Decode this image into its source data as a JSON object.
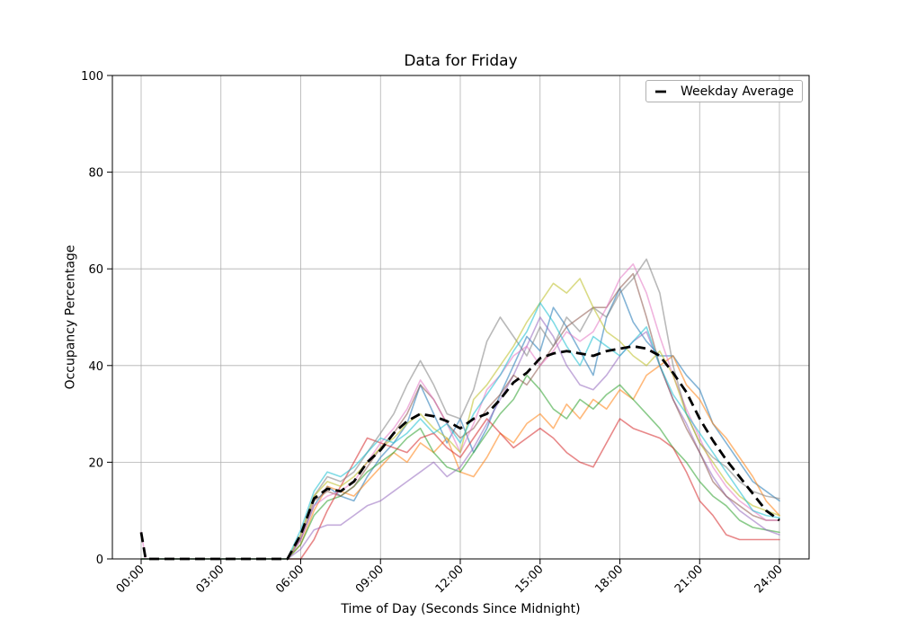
{
  "figure": {
    "title": "Data for Friday",
    "xlabel": "Time of Day (Seconds Since Midnight)",
    "ylabel": "Occupancy Percentage",
    "legend_label": "Weekday Average"
  },
  "chart_data": {
    "type": "line",
    "title": "Data for Friday",
    "xlabel": "Time of Day (Seconds Since Midnight)",
    "ylabel": "Occupancy Percentage",
    "grid": true,
    "legend_position": "upper right",
    "ylim": [
      0,
      100
    ],
    "y_ticks": [
      0,
      20,
      40,
      60,
      80,
      100
    ],
    "x_tick_hours": [
      0,
      3,
      6,
      9,
      12,
      15,
      18,
      21,
      24
    ],
    "x_tick_labels": [
      "00:00",
      "03:00",
      "06:00",
      "09:00",
      "12:00",
      "15:00",
      "18:00",
      "21:00",
      "24:00"
    ],
    "grid_color": "#b0b0b0",
    "series_alpha": 0.55,
    "x_hours": [
      0,
      0.17,
      0.5,
      1,
      1.5,
      2,
      2.5,
      3,
      3.5,
      4,
      4.5,
      5,
      5.5,
      6,
      6.5,
      7,
      7.5,
      8,
      8.5,
      9,
      9.5,
      10,
      10.5,
      11,
      11.5,
      12,
      12.5,
      13,
      13.5,
      14,
      14.5,
      15,
      15.5,
      16,
      16.5,
      17,
      17.5,
      18,
      18.5,
      19,
      19.5,
      20,
      20.5,
      21,
      21.5,
      22,
      22.5,
      23,
      23.5,
      24
    ],
    "series": [
      {
        "color": "#1f77b4",
        "values": [
          0,
          0,
          0,
          0,
          0,
          0,
          0,
          0,
          0,
          0,
          0,
          0,
          0,
          4,
          11,
          15,
          13,
          12,
          17,
          21,
          24,
          28,
          36,
          30,
          24,
          29,
          22,
          27,
          34,
          40,
          46,
          43,
          52,
          48,
          43,
          38,
          50,
          56,
          49,
          45,
          42,
          42,
          38,
          35,
          28,
          24,
          20,
          16,
          14,
          12
        ]
      },
      {
        "color": "#ff7f0e",
        "values": [
          0,
          0,
          0,
          0,
          0,
          0,
          0,
          0,
          0,
          0,
          0,
          0,
          0,
          3,
          10,
          15,
          14,
          13,
          16,
          19,
          22,
          20,
          24,
          22,
          25,
          18,
          17,
          21,
          26,
          24,
          28,
          30,
          27,
          32,
          29,
          33,
          31,
          35,
          33,
          38,
          40,
          42,
          36,
          33,
          28,
          25,
          21,
          17,
          12,
          9
        ]
      },
      {
        "color": "#2ca02c",
        "values": [
          0,
          0,
          0,
          0,
          0,
          0,
          0,
          0,
          0,
          0,
          0,
          0,
          0,
          3,
          9,
          12,
          13,
          15,
          18,
          20,
          22,
          25,
          27,
          22,
          19,
          18,
          22,
          26,
          30,
          33,
          38,
          35,
          31,
          29,
          33,
          31,
          34,
          36,
          33,
          30,
          27,
          23,
          20,
          16,
          13,
          11,
          8,
          6.5,
          6,
          5.5
        ]
      },
      {
        "color": "#d62728",
        "values": [
          0,
          0,
          0,
          0,
          0,
          0,
          0,
          0,
          0,
          0,
          0,
          0,
          0,
          0,
          4,
          10,
          15,
          20,
          25,
          24,
          23,
          22,
          25,
          26,
          23,
          21,
          25,
          29,
          26,
          23,
          25,
          27,
          25,
          22,
          20,
          19,
          24,
          29,
          27,
          26,
          25,
          23,
          18,
          12,
          9,
          5,
          4,
          4,
          4,
          4
        ]
      },
      {
        "color": "#9467bd",
        "values": [
          0,
          0,
          0,
          0,
          0,
          0,
          0,
          0,
          0,
          0,
          0,
          0,
          0,
          2,
          6,
          7,
          7,
          9,
          11,
          12,
          14,
          16,
          18,
          20,
          17,
          19,
          23,
          28,
          33,
          38,
          44,
          50,
          46,
          40,
          36,
          35,
          38,
          42,
          45,
          47,
          40,
          33,
          28,
          22,
          17,
          13,
          10,
          8,
          6,
          5
        ]
      },
      {
        "color": "#8c564b",
        "values": [
          0,
          0,
          0,
          0,
          0,
          0,
          0,
          0,
          0,
          0,
          0,
          0,
          0,
          4,
          12,
          14,
          13,
          15,
          19,
          23,
          26,
          30,
          36,
          33,
          28,
          25,
          27,
          31,
          34,
          38,
          36,
          40,
          44,
          48,
          50,
          52,
          52,
          56,
          59,
          50,
          40,
          33,
          27,
          22,
          16,
          13,
          11,
          9,
          8,
          8
        ]
      },
      {
        "color": "#e377c2",
        "values": [
          5.5,
          0,
          0,
          0,
          0,
          0,
          0,
          0,
          0,
          0,
          0,
          0,
          0,
          4,
          11,
          13,
          14,
          16,
          20,
          24,
          27,
          31,
          37,
          33,
          28,
          22,
          28,
          35,
          38,
          42,
          44,
          40,
          43,
          47,
          45,
          47,
          52,
          58,
          61,
          55,
          46,
          38,
          31,
          25,
          19,
          15,
          12,
          10,
          8,
          8
        ]
      },
      {
        "color": "#7f7f7f",
        "values": [
          0,
          0,
          0,
          0,
          0,
          0,
          0,
          0,
          0,
          0,
          0,
          0,
          0,
          5,
          13,
          17,
          16,
          18,
          22,
          26,
          30,
          36,
          41,
          36,
          30,
          29,
          35,
          45,
          50,
          46,
          42,
          48,
          44,
          50,
          47,
          52,
          50,
          55,
          58,
          62,
          55,
          40,
          30,
          24,
          21,
          19,
          16,
          14,
          13,
          12.5
        ]
      },
      {
        "color": "#bcbd22",
        "values": [
          0,
          0,
          0,
          0,
          0,
          0,
          0,
          0,
          0,
          0,
          0,
          0,
          0,
          5,
          13,
          16,
          15,
          17,
          20,
          23,
          25,
          28,
          30,
          27,
          25,
          22,
          33,
          36,
          40,
          44,
          49,
          53,
          57,
          55,
          58,
          52,
          47,
          45,
          42,
          40,
          43,
          38,
          30,
          24,
          20,
          16,
          13,
          11,
          10,
          9
        ]
      },
      {
        "color": "#17becf",
        "values": [
          0,
          0,
          0,
          0,
          0,
          0,
          0,
          0,
          0,
          0,
          0,
          0,
          0,
          6,
          14,
          18,
          17,
          19,
          22,
          25,
          24,
          26,
          29,
          26,
          28,
          24,
          30,
          34,
          38,
          43,
          47,
          53,
          49,
          44,
          40,
          46,
          44,
          42,
          45,
          48,
          40,
          34,
          30,
          26,
          22,
          18,
          14,
          10,
          9,
          8.5
        ]
      }
    ],
    "average_series": {
      "name": "Weekday Average",
      "color": "#000000",
      "linestyle": "dashed",
      "values": [
        5.5,
        0,
        0,
        0,
        0,
        0,
        0,
        0,
        0,
        0,
        0,
        0,
        0,
        5,
        12.5,
        14.5,
        14,
        16,
        20,
        22.5,
        26,
        28.5,
        30,
        29.5,
        28.5,
        27,
        29,
        30,
        33,
        36.5,
        38.5,
        41.5,
        42.5,
        43,
        42.5,
        42,
        43,
        43.5,
        44,
        43.5,
        42,
        38.5,
        34.5,
        29,
        24.5,
        20.5,
        17,
        13.5,
        10,
        8
      ]
    }
  }
}
